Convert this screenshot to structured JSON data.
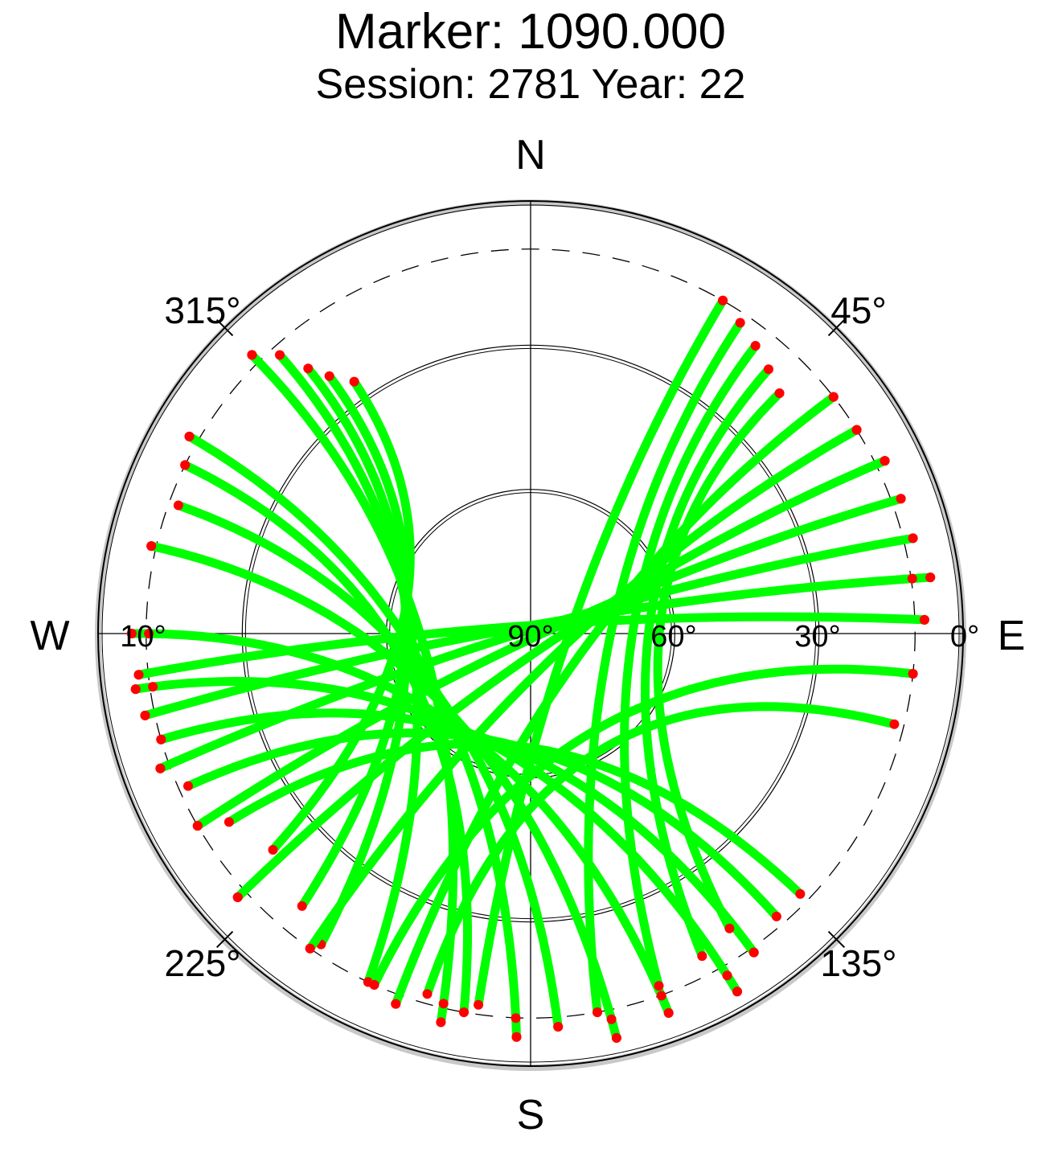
{
  "chart_data": {
    "type": "scatter",
    "projection": "polar skyplot (azimuth clockwise from north, elevation 0° at rim to 90° at center)",
    "title": "Marker: 1090.000",
    "subtitle": "Session: 2781 Year: 22",
    "compass": {
      "north": "N",
      "south": "S",
      "east": "E",
      "west": "W"
    },
    "azimuth_labels": [
      "315°",
      "45°",
      "225°",
      "135°"
    ],
    "elevation_labels": [
      "10°",
      "90°",
      "60°",
      "30°",
      "0°"
    ],
    "elevation_circles": [
      0,
      30,
      60
    ],
    "elevation_mask_circle": 10,
    "colors": {
      "above_mask": "#00ff00",
      "below_mask": "#ff0000",
      "grid": "#000000",
      "rim": "#c8c8c8"
    },
    "tracks": [
      {
        "start": [
          315,
          8
        ],
        "end": [
          193,
          7
        ]
      },
      {
        "start": [
          318,
          12
        ],
        "end": [
          205,
          10
        ]
      },
      {
        "start": [
          320,
          18
        ],
        "end": [
          214,
          12
        ]
      },
      {
        "start": [
          322,
          22
        ],
        "end": [
          220,
          16
        ]
      },
      {
        "start": [
          325,
          26
        ],
        "end": [
          230,
          20
        ]
      },
      {
        "start": [
          300,
          8
        ],
        "end": [
          182,
          6
        ]
      },
      {
        "start": [
          296,
          10
        ],
        "end": [
          190,
          10
        ]
      },
      {
        "start": [
          290,
          12
        ],
        "end": [
          176,
          8
        ]
      },
      {
        "start": [
          283,
          9
        ],
        "end": [
          168,
          4
        ]
      },
      {
        "start": [
          270,
          7
        ],
        "end": [
          160,
          6
        ]
      },
      {
        "start": [
          262,
          7
        ],
        "end": [
          150,
          4
        ]
      },
      {
        "start": [
          254,
          10
        ],
        "end": [
          145,
          9
        ]
      },
      {
        "start": [
          246,
          12
        ],
        "end": [
          139,
          12
        ]
      },
      {
        "start": [
          238,
          16
        ],
        "end": [
          134,
          12
        ]
      },
      {
        "start": [
          30,
          10
        ],
        "end": [
          188,
          12
        ]
      },
      {
        "start": [
          34,
          12
        ],
        "end": [
          170,
          10
        ]
      },
      {
        "start": [
          38,
          14
        ],
        "end": [
          160,
          12
        ]
      },
      {
        "start": [
          42,
          16
        ],
        "end": [
          152,
          14
        ]
      },
      {
        "start": [
          46,
          18
        ],
        "end": [
          146,
          16
        ]
      },
      {
        "start": [
          52,
          10
        ],
        "end": [
          200,
          8
        ]
      },
      {
        "start": [
          58,
          10
        ],
        "end": [
          215,
          10
        ]
      },
      {
        "start": [
          64,
          8
        ],
        "end": [
          228,
          8
        ]
      },
      {
        "start": [
          70,
          8
        ],
        "end": [
          240,
          10
        ]
      },
      {
        "start": [
          76,
          8
        ],
        "end": [
          250,
          8
        ]
      },
      {
        "start": [
          82,
          6
        ],
        "end": [
          258,
          8
        ]
      },
      {
        "start": [
          88,
          8
        ],
        "end": [
          264,
          8
        ]
      },
      {
        "start": [
          96,
          10
        ],
        "end": [
          204,
          10
        ]
      },
      {
        "start": [
          104,
          12
        ],
        "end": [
          196,
          12
        ]
      }
    ]
  }
}
